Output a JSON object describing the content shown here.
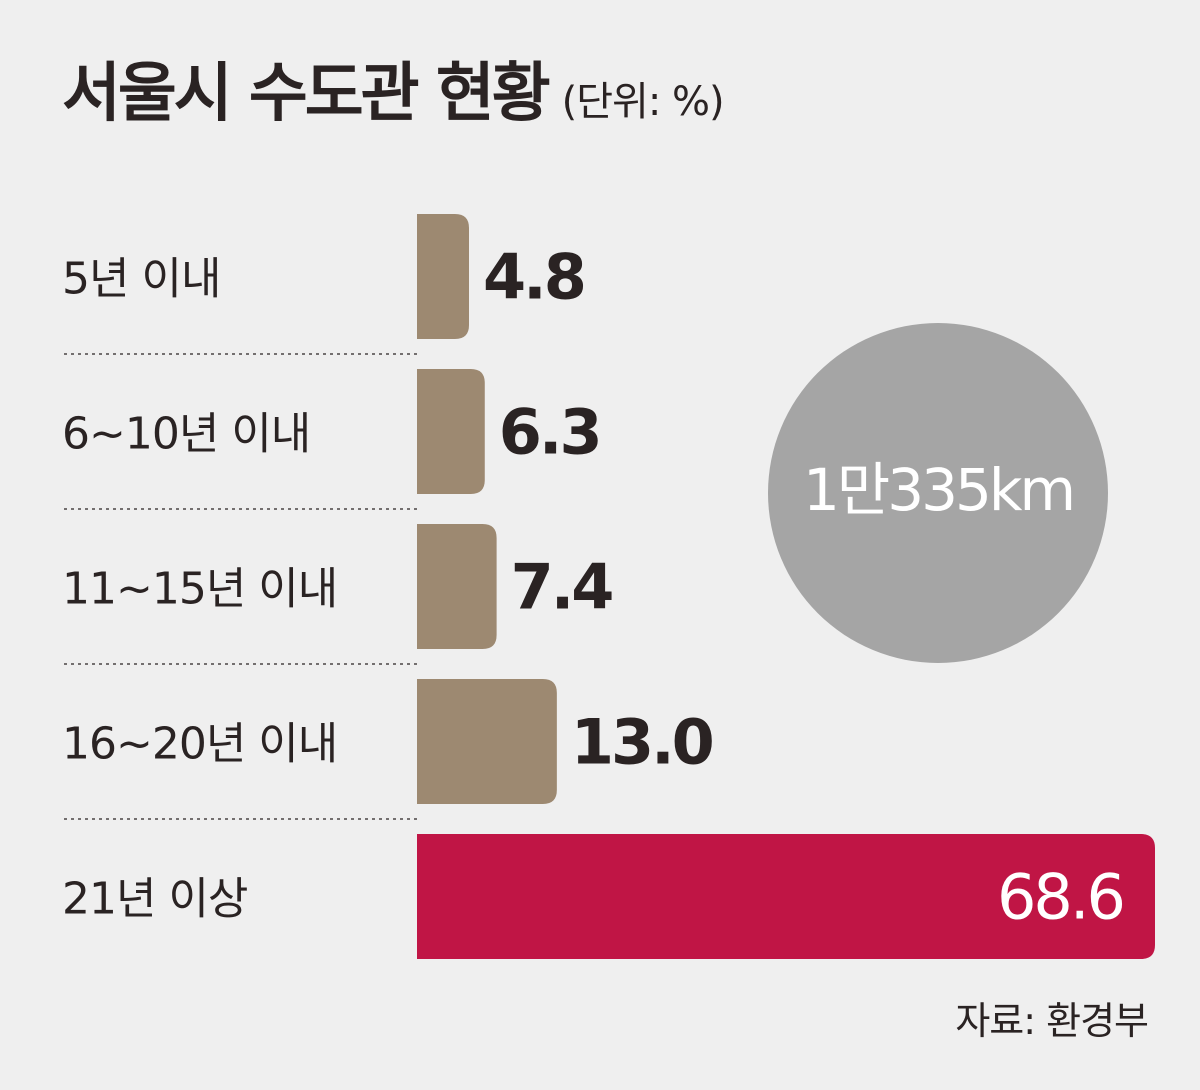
{
  "title": "서울시 수도관 현황",
  "unit": "(단위: %)",
  "source": "자료: 환경부",
  "circle_label": "1만335km",
  "colors": {
    "background": "#efefef",
    "bar": "#9d8971",
    "highlight_bar": "#c01545",
    "circle": "#a5a5a5",
    "text": "#2a2323",
    "divider": "#4a4545"
  },
  "chart_data": {
    "type": "bar",
    "orientation": "horizontal",
    "title": "서울시 수도관 현황",
    "unit": "%",
    "categories": [
      "5년 이내",
      "6~10년 이내",
      "11~15년 이내",
      "16~20년 이내",
      "21년 이상"
    ],
    "values": [
      4.8,
      6.3,
      7.4,
      13.0,
      68.6
    ],
    "value_labels": [
      "4.8",
      "6.3",
      "7.4",
      "13.0",
      "68.6"
    ],
    "highlight_index": 4,
    "annotation": "1만335km"
  }
}
